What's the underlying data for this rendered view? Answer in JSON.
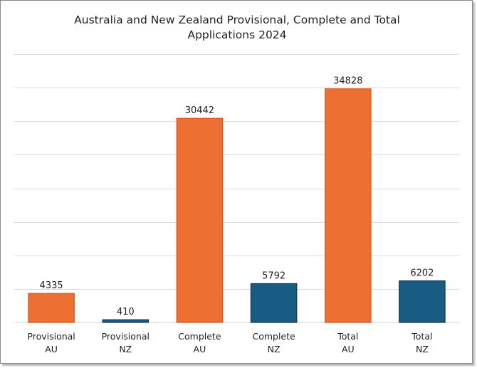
{
  "chart_data": {
    "type": "bar",
    "title_line1": "Australia and New Zealand Provisional, Complete and Total",
    "title_line2": "Applications 2024",
    "categories": [
      {
        "line1": "Provisional",
        "line2": "AU"
      },
      {
        "line1": "Provisional",
        "line2": "NZ"
      },
      {
        "line1": "Complete",
        "line2": "AU"
      },
      {
        "line1": "Complete",
        "line2": "NZ"
      },
      {
        "line1": "Total",
        "line2": "AU"
      },
      {
        "line1": "Total",
        "line2": "NZ"
      }
    ],
    "values": [
      4335,
      410,
      30442,
      5792,
      34828,
      6202
    ],
    "bar_colors": [
      "#ed7032",
      "#175c82",
      "#ed7032",
      "#175c82",
      "#ed7032",
      "#175c82"
    ],
    "bar_outline_colors": [
      "#d9531e",
      "#0f3147",
      "#d9531e",
      "#0f3147",
      "#d9531e",
      "#0f3147"
    ],
    "ylim": [
      0,
      40000
    ],
    "y_grid_step": 5000,
    "y_tick_labels_shown": false,
    "grid": true,
    "gridline_color": "#d9d9d9",
    "data_labels": true,
    "legend": "none"
  }
}
